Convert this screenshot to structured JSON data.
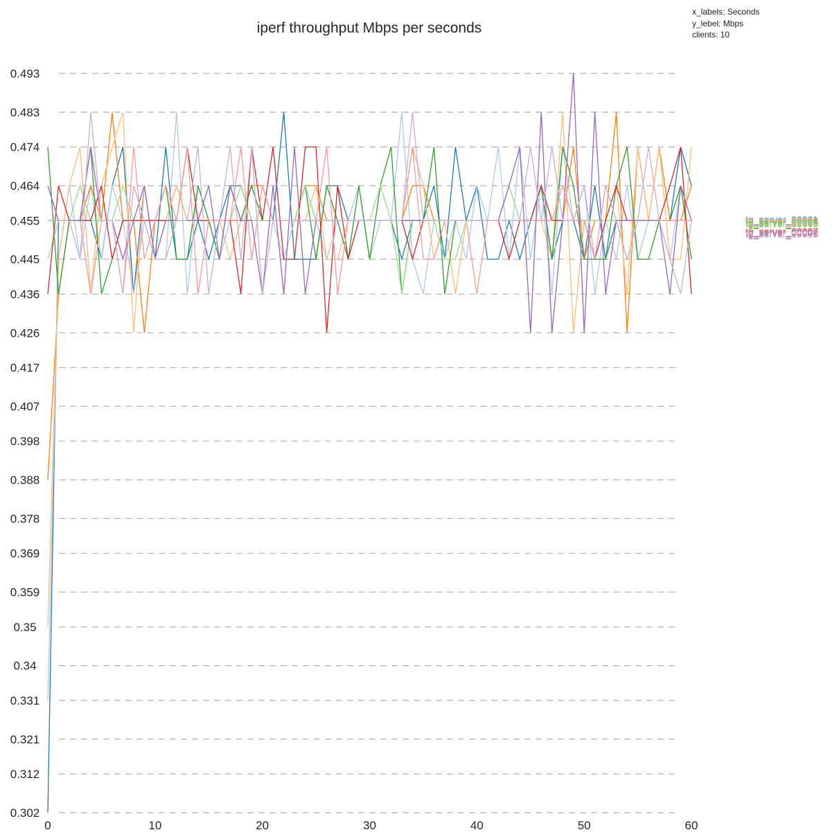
{
  "chart_data": {
    "type": "line",
    "title": "iperf throughput Mbps per seconds",
    "xlabel": "",
    "ylabel": "",
    "meta_lines": [
      "x_labels: Seconds",
      "y_lebel: Mbps",
      "clients: 10"
    ],
    "xlim": [
      0,
      60
    ],
    "ylim": [
      0.302,
      0.493
    ],
    "x_ticks": [
      0,
      10,
      20,
      30,
      40,
      50,
      60
    ],
    "y_ticks": [
      0.302,
      0.312,
      0.321,
      0.331,
      0.34,
      0.35,
      0.359,
      0.369,
      0.378,
      0.388,
      0.398,
      0.407,
      0.417,
      0.426,
      0.436,
      0.445,
      0.455,
      0.464,
      0.474,
      0.483,
      0.493
    ],
    "y_tick_labels": [
      "0.302",
      "0.312",
      "0.321",
      "0.331",
      "0.34",
      "0.35",
      "0.359",
      "0.369",
      "0.378",
      "0.388",
      "0.398",
      "0.407",
      "0.417",
      "0.426",
      "0.436",
      "0.445",
      "0.455",
      "0.464",
      "0.474",
      "0.483",
      "0.493"
    ],
    "grid": "horizontal-dashed",
    "legend_placement": "right",
    "legend_labels": [
      "tg_server_00001",
      "tg_server_00002",
      "tg_server_00003",
      "tg_server_00004",
      "tg_server_00005",
      "tg_server_00006",
      "tg_server_00007",
      "tg_server_00008",
      "tg_server_00009",
      "tg_server_00010"
    ],
    "x": [
      0,
      1,
      2,
      3,
      4,
      5,
      6,
      7,
      8,
      9,
      10,
      11,
      12,
      13,
      14,
      15,
      16,
      17,
      18,
      19,
      20,
      21,
      22,
      23,
      24,
      25,
      26,
      27,
      28,
      29,
      30,
      31,
      32,
      33,
      34,
      35,
      36,
      37,
      38,
      39,
      40,
      41,
      42,
      43,
      44,
      45,
      46,
      47,
      48,
      49,
      50,
      51,
      52,
      53,
      54,
      55,
      56,
      57,
      58,
      59,
      60
    ],
    "series": [
      {
        "color": "#1f77b4",
        "values": [
          0.302,
          0.455,
          0.455,
          0.455,
          0.455,
          0.445,
          0.464,
          0.474,
          0.436,
          0.464,
          0.445,
          0.474,
          0.445,
          0.445,
          0.455,
          0.445,
          0.455,
          0.464,
          0.464,
          0.455,
          0.455,
          0.455,
          0.483,
          0.445,
          0.445,
          0.445,
          0.464,
          0.464,
          0.455,
          0.455,
          0.455,
          0.455,
          0.455,
          0.445,
          0.455,
          0.455,
          0.464,
          0.445,
          0.474,
          0.455,
          0.464,
          0.445,
          0.445,
          0.455,
          0.445,
          0.455,
          0.464,
          0.445,
          0.455,
          0.455,
          0.445,
          0.464,
          0.445,
          0.455,
          0.455,
          0.455,
          0.455,
          0.455,
          0.455,
          0.474,
          0.464
        ]
      },
      {
        "color": "#aec7e8",
        "values": [
          0.331,
          0.445,
          0.464,
          0.445,
          0.464,
          0.445,
          0.464,
          0.455,
          0.436,
          0.455,
          0.445,
          0.445,
          0.483,
          0.436,
          0.464,
          0.455,
          0.445,
          0.455,
          0.455,
          0.464,
          0.455,
          0.455,
          0.445,
          0.455,
          0.464,
          0.455,
          0.445,
          0.455,
          0.455,
          0.464,
          0.445,
          0.455,
          0.455,
          0.483,
          0.445,
          0.436,
          0.455,
          0.445,
          0.455,
          0.445,
          0.464,
          0.455,
          0.474,
          0.445,
          0.474,
          0.445,
          0.464,
          0.436,
          0.474,
          0.455,
          0.464,
          0.436,
          0.455,
          0.445,
          0.464,
          0.445,
          0.455,
          0.455,
          0.445,
          0.464,
          0.455
        ]
      },
      {
        "color": "#ff7f0e",
        "values": [
          0.388,
          0.436,
          0.455,
          0.455,
          0.464,
          0.455,
          0.483,
          0.455,
          0.455,
          0.426,
          0.455,
          0.455,
          0.464,
          0.455,
          0.455,
          0.455,
          0.455,
          0.455,
          0.455,
          0.464,
          0.464,
          0.455,
          0.455,
          0.455,
          0.464,
          0.464,
          0.455,
          0.455,
          0.455,
          0.455,
          0.455,
          0.455,
          0.455,
          0.455,
          0.464,
          0.464,
          0.455,
          0.455,
          0.455,
          0.455,
          0.455,
          0.455,
          0.455,
          0.455,
          0.455,
          0.455,
          0.455,
          0.455,
          0.455,
          0.474,
          0.445,
          0.455,
          0.455,
          0.483,
          0.426,
          0.474,
          0.455,
          0.474,
          0.455,
          0.455,
          0.464
        ]
      },
      {
        "color": "#ffbb78",
        "values": [
          0.35,
          0.445,
          0.464,
          0.474,
          0.436,
          0.464,
          0.474,
          0.483,
          0.426,
          0.464,
          0.445,
          0.455,
          0.464,
          0.455,
          0.455,
          0.455,
          0.455,
          0.445,
          0.455,
          0.455,
          0.455,
          0.455,
          0.455,
          0.455,
          0.455,
          0.464,
          0.445,
          0.445,
          0.455,
          0.455,
          0.455,
          0.455,
          0.455,
          0.455,
          0.474,
          0.464,
          0.445,
          0.455,
          0.436,
          0.455,
          0.455,
          0.455,
          0.455,
          0.455,
          0.455,
          0.455,
          0.455,
          0.445,
          0.483,
          0.426,
          0.455,
          0.455,
          0.455,
          0.464,
          0.436,
          0.474,
          0.455,
          0.474,
          0.445,
          0.445,
          0.474
        ]
      },
      {
        "color": "#2ca02c",
        "values": [
          0.474,
          0.436,
          0.455,
          0.455,
          0.474,
          0.436,
          0.445,
          0.455,
          0.455,
          0.455,
          0.455,
          0.464,
          0.445,
          0.445,
          0.464,
          0.455,
          0.445,
          0.464,
          0.455,
          0.464,
          0.455,
          0.455,
          0.455,
          0.455,
          0.464,
          0.445,
          0.464,
          0.455,
          0.445,
          0.464,
          0.445,
          0.464,
          0.474,
          0.436,
          0.455,
          0.455,
          0.474,
          0.436,
          0.455,
          0.455,
          0.455,
          0.455,
          0.455,
          0.455,
          0.455,
          0.455,
          0.464,
          0.445,
          0.474,
          0.464,
          0.445,
          0.445,
          0.445,
          0.464,
          0.474,
          0.445,
          0.445,
          0.455,
          0.455,
          0.464,
          0.445
        ]
      },
      {
        "color": "#98df8a",
        "values": [
          0.445,
          0.455,
          0.455,
          0.464,
          0.455,
          0.455,
          0.455,
          0.464,
          0.455,
          0.455,
          0.455,
          0.455,
          0.455,
          0.455,
          0.455,
          0.455,
          0.455,
          0.455,
          0.464,
          0.455,
          0.455,
          0.455,
          0.455,
          0.455,
          0.464,
          0.455,
          0.455,
          0.455,
          0.455,
          0.455,
          0.455,
          0.464,
          0.455,
          0.436,
          0.455,
          0.455,
          0.455,
          0.445,
          0.445,
          0.455,
          0.455,
          0.455,
          0.455,
          0.464,
          0.455,
          0.455,
          0.455,
          0.455,
          0.455,
          0.455,
          0.455,
          0.455,
          0.455,
          0.455,
          0.455,
          0.455,
          0.455,
          0.455,
          0.455,
          0.455,
          0.455
        ]
      },
      {
        "color": "#d62728",
        "values": [
          0.436,
          0.464,
          0.455,
          0.455,
          0.455,
          0.464,
          0.445,
          0.455,
          0.455,
          0.455,
          0.455,
          0.455,
          0.455,
          0.474,
          0.455,
          0.455,
          0.455,
          0.455,
          0.436,
          0.474,
          0.455,
          0.474,
          0.445,
          0.445,
          0.474,
          0.474,
          0.426,
          0.464,
          0.445,
          0.455,
          0.455,
          0.455,
          0.455,
          0.455,
          0.445,
          0.455,
          0.455,
          0.455,
          0.455,
          0.455,
          0.455,
          0.455,
          0.455,
          0.445,
          0.455,
          0.455,
          0.464,
          0.455,
          0.455,
          0.455,
          0.455,
          0.445,
          0.455,
          0.464,
          0.455,
          0.455,
          0.455,
          0.455,
          0.464,
          0.474,
          0.436
        ]
      },
      {
        "color": "#ff9896",
        "values": [
          0.455,
          0.455,
          0.455,
          0.455,
          0.436,
          0.455,
          0.455,
          0.436,
          0.474,
          0.445,
          0.455,
          0.464,
          0.455,
          0.474,
          0.436,
          0.455,
          0.455,
          0.455,
          0.474,
          0.445,
          0.464,
          0.455,
          0.455,
          0.455,
          0.455,
          0.455,
          0.474,
          0.436,
          0.455,
          0.455,
          0.455,
          0.455,
          0.455,
          0.455,
          0.474,
          0.445,
          0.445,
          0.455,
          0.455,
          0.455,
          0.436,
          0.455,
          0.455,
          0.455,
          0.455,
          0.455,
          0.455,
          0.455,
          0.464,
          0.455,
          0.455,
          0.445,
          0.464,
          0.455,
          0.455,
          0.455,
          0.455,
          0.455,
          0.455,
          0.455,
          0.455
        ]
      },
      {
        "color": "#9467bd",
        "values": [
          0.464,
          0.455,
          0.455,
          0.455,
          0.474,
          0.455,
          0.455,
          0.445,
          0.455,
          0.464,
          0.445,
          0.455,
          0.455,
          0.455,
          0.455,
          0.464,
          0.445,
          0.464,
          0.455,
          0.455,
          0.436,
          0.464,
          0.436,
          0.474,
          0.436,
          0.455,
          0.455,
          0.455,
          0.455,
          0.455,
          0.455,
          0.455,
          0.455,
          0.455,
          0.455,
          0.455,
          0.455,
          0.455,
          0.455,
          0.455,
          0.455,
          0.455,
          0.455,
          0.464,
          0.474,
          0.426,
          0.483,
          0.426,
          0.455,
          0.493,
          0.426,
          0.483,
          0.436,
          0.455,
          0.455,
          0.455,
          0.455,
          0.455,
          0.436,
          0.464,
          0.455
        ]
      },
      {
        "color": "#c5b0d5",
        "values": [
          0.455,
          0.455,
          0.455,
          0.445,
          0.483,
          0.455,
          0.455,
          0.436,
          0.464,
          0.455,
          0.445,
          0.445,
          0.455,
          0.455,
          0.474,
          0.436,
          0.455,
          0.474,
          0.445,
          0.474,
          0.436,
          0.455,
          0.455,
          0.455,
          0.455,
          0.455,
          0.455,
          0.455,
          0.455,
          0.455,
          0.455,
          0.455,
          0.455,
          0.455,
          0.483,
          0.455,
          0.455,
          0.455,
          0.455,
          0.455,
          0.455,
          0.455,
          0.455,
          0.455,
          0.455,
          0.474,
          0.455,
          0.474,
          0.455,
          0.455,
          0.464,
          0.445,
          0.464,
          0.455,
          0.445,
          0.455,
          0.474,
          0.455,
          0.445,
          0.436,
          0.455
        ]
      }
    ]
  }
}
